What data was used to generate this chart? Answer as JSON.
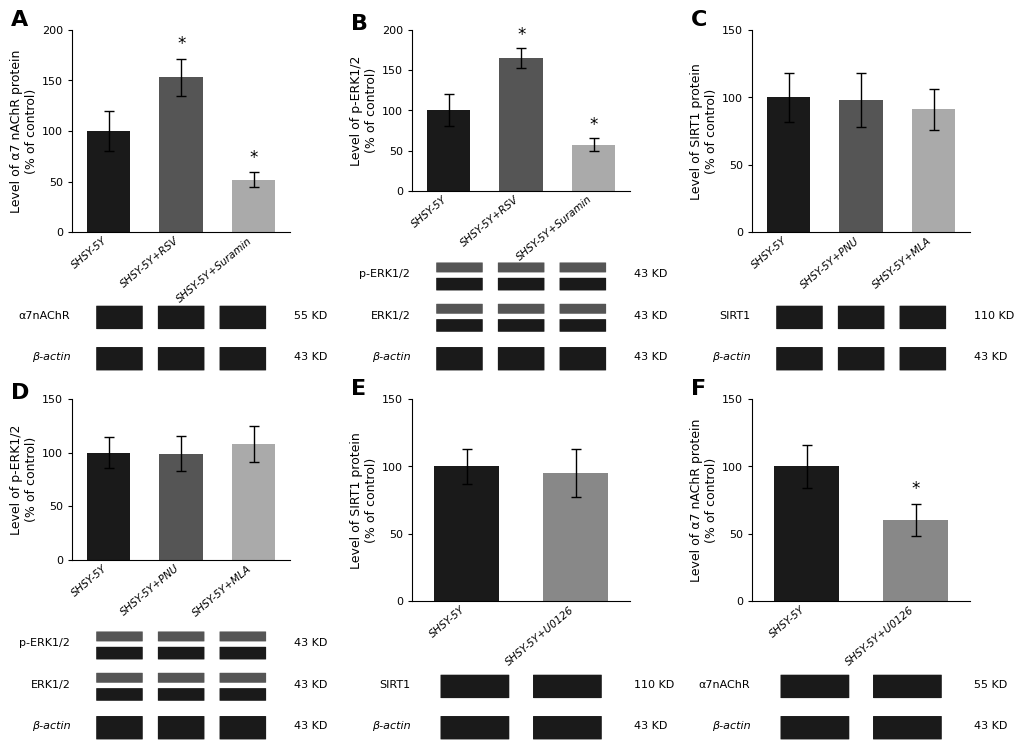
{
  "panels": {
    "A": {
      "ylabel": "Level of α7 nAChR protein\n(% of control)",
      "ylim": [
        0,
        200
      ],
      "yticks": [
        0,
        50,
        100,
        150,
        200
      ],
      "bars": [
        {
          "label": "SHSY-5Y",
          "value": 100,
          "error": 20,
          "color": "#1a1a1a"
        },
        {
          "label": "SHSY-5Y+RSV",
          "value": 153,
          "error": 18,
          "color": "#555555"
        },
        {
          "label": "SHSY-5Y+Suramin",
          "value": 52,
          "error": 7,
          "color": "#aaaaaa"
        }
      ],
      "sig": [
        false,
        true,
        true
      ],
      "blots": [
        {
          "label": "α7nAChR",
          "kd": "55 KD",
          "type": "single"
        },
        {
          "label": "β-actin",
          "kd": "43 KD",
          "type": "single"
        }
      ]
    },
    "B": {
      "ylabel": "Level of p-ERK1/2\n(% of control)",
      "ylim": [
        0,
        200
      ],
      "yticks": [
        0,
        50,
        100,
        150,
        200
      ],
      "bars": [
        {
          "label": "SHSY-5Y",
          "value": 100,
          "error": 20,
          "color": "#1a1a1a"
        },
        {
          "label": "SHSY-5Y+RSV",
          "value": 165,
          "error": 12,
          "color": "#555555"
        },
        {
          "label": "SHSY-5Y+Suramin",
          "value": 57,
          "error": 8,
          "color": "#aaaaaa"
        }
      ],
      "sig": [
        false,
        true,
        true
      ],
      "blots": [
        {
          "label": "p-ERK1/2",
          "kd": "43 KD",
          "type": "double"
        },
        {
          "label": "ERK1/2",
          "kd": "43 KD",
          "type": "double"
        },
        {
          "label": "β-actin",
          "kd": "43 KD",
          "type": "single"
        }
      ]
    },
    "C": {
      "ylabel": "Level of SIRT1 protein\n(% of control)",
      "ylim": [
        0,
        150
      ],
      "yticks": [
        0,
        50,
        100,
        150
      ],
      "bars": [
        {
          "label": "SHSY-5Y",
          "value": 100,
          "error": 18,
          "color": "#1a1a1a"
        },
        {
          "label": "SHSY-5Y+PNU",
          "value": 98,
          "error": 20,
          "color": "#555555"
        },
        {
          "label": "SHSY-5Y+MLA",
          "value": 91,
          "error": 15,
          "color": "#aaaaaa"
        }
      ],
      "sig": [
        false,
        false,
        false
      ],
      "blots": [
        {
          "label": "SIRT1",
          "kd": "110 KD",
          "type": "single"
        },
        {
          "label": "β-actin",
          "kd": "43 KD",
          "type": "single"
        }
      ]
    },
    "D": {
      "ylabel": "Level of p-ERK1/2\n(% of control)",
      "ylim": [
        0,
        150
      ],
      "yticks": [
        0,
        50,
        100,
        150
      ],
      "bars": [
        {
          "label": "SHSY-5Y",
          "value": 100,
          "error": 14,
          "color": "#1a1a1a"
        },
        {
          "label": "SHSY-5Y+PNU",
          "value": 99,
          "error": 16,
          "color": "#555555"
        },
        {
          "label": "SHSY-5Y+MLA",
          "value": 108,
          "error": 17,
          "color": "#aaaaaa"
        }
      ],
      "sig": [
        false,
        false,
        false
      ],
      "blots": [
        {
          "label": "p-ERK1/2",
          "kd": "43 KD",
          "type": "double"
        },
        {
          "label": "ERK1/2",
          "kd": "43 KD",
          "type": "double"
        },
        {
          "label": "β-actin",
          "kd": "43 KD",
          "type": "single"
        }
      ]
    },
    "E": {
      "ylabel": "Level of SIRT1 protein\n(% of control)",
      "ylim": [
        0,
        150
      ],
      "yticks": [
        0,
        50,
        100,
        150
      ],
      "bars": [
        {
          "label": "SHSY-5Y",
          "value": 100,
          "error": 13,
          "color": "#1a1a1a"
        },
        {
          "label": "SHSY-5Y+U0126",
          "value": 95,
          "error": 18,
          "color": "#888888"
        }
      ],
      "sig": [
        false,
        false
      ],
      "blots": [
        {
          "label": "SIRT1",
          "kd": "110 KD",
          "type": "single"
        },
        {
          "label": "β-actin",
          "kd": "43 KD",
          "type": "single"
        }
      ]
    },
    "F": {
      "ylabel": "Level of α7 nAChR protein\n(% of control)",
      "ylim": [
        0,
        150
      ],
      "yticks": [
        0,
        50,
        100,
        150
      ],
      "bars": [
        {
          "label": "SHSY-5Y",
          "value": 100,
          "error": 16,
          "color": "#1a1a1a"
        },
        {
          "label": "SHSY-5Y+U0126",
          "value": 60,
          "error": 12,
          "color": "#888888"
        }
      ],
      "sig": [
        false,
        true
      ],
      "blots": [
        {
          "label": "α7nAChR",
          "kd": "55 KD",
          "type": "single"
        },
        {
          "label": "β-actin",
          "kd": "43 KD",
          "type": "single"
        }
      ]
    }
  },
  "panel_order": [
    "A",
    "B",
    "C",
    "D",
    "E",
    "F"
  ],
  "panel_cols": {
    "A": 0,
    "B": 1,
    "C": 2,
    "D": 0,
    "E": 1,
    "F": 2
  },
  "panel_rows": {
    "A": 0,
    "B": 0,
    "C": 0,
    "D": 1,
    "E": 1,
    "F": 1
  },
  "background_color": "#ffffff",
  "label_fontsize": 9,
  "tick_fontsize": 8,
  "blot_label_fontsize": 8,
  "kd_fontsize": 8,
  "panel_label_fontsize": 16,
  "star_fontsize": 12
}
